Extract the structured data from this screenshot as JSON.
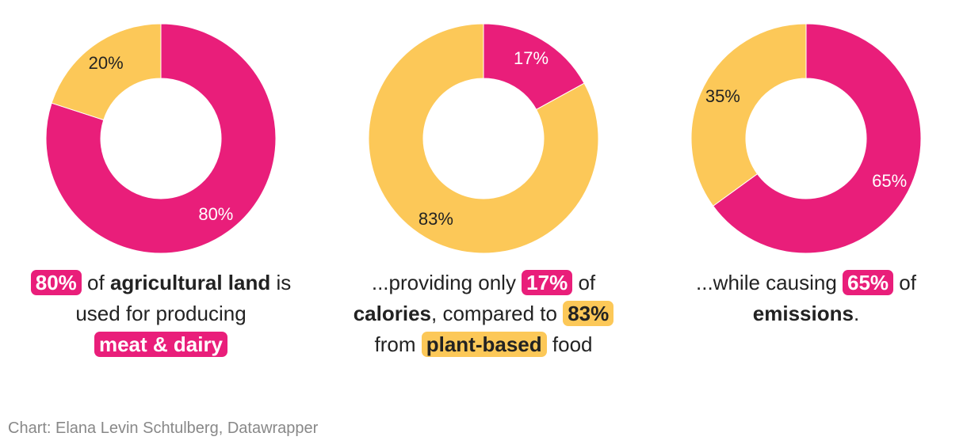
{
  "colors": {
    "meat_dairy": "#e91e7a",
    "plant_based": "#fcc858"
  },
  "chart_data": [
    {
      "type": "pie",
      "subtype": "donut",
      "slices": [
        {
          "label": "80%",
          "value": 80,
          "color": "#e91e7a",
          "label_color": "#ffffff"
        },
        {
          "label": "20%",
          "value": 20,
          "color": "#fcc858",
          "label_color": "#222222"
        }
      ]
    },
    {
      "type": "pie",
      "subtype": "donut",
      "slices": [
        {
          "label": "17%",
          "value": 17,
          "color": "#e91e7a",
          "label_color": "#ffffff"
        },
        {
          "label": "83%",
          "value": 83,
          "color": "#fcc858",
          "label_color": "#222222"
        }
      ]
    },
    {
      "type": "pie",
      "subtype": "donut",
      "slices": [
        {
          "label": "65%",
          "value": 65,
          "color": "#e91e7a",
          "label_color": "#ffffff"
        },
        {
          "label": "35%",
          "value": 35,
          "color": "#fcc858",
          "label_color": "#222222"
        }
      ]
    }
  ],
  "captions": [
    {
      "hl1": "80%",
      "t1": " of ",
      "b1": "agricultural land",
      "t2": " is",
      "t3": "used for producing",
      "hl2": "meat & dairy"
    },
    {
      "t1": "...providing only ",
      "hl1": "17%",
      "t2": " of",
      "b1": "calories",
      "t3": ", compared to ",
      "hl2": "83%",
      "t4": "from ",
      "hl3": "plant-based",
      "t5": " food"
    },
    {
      "t1": "...while causing ",
      "hl1": "65%",
      "t2": " of",
      "b1": "emissions",
      "t3": "."
    }
  ],
  "footer": "Chart: Elana Levin Schtulberg, Datawrapper"
}
